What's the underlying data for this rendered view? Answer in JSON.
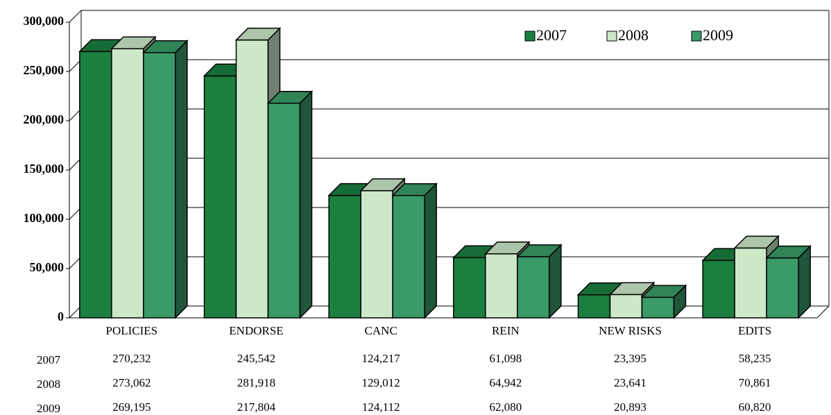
{
  "chart_data": {
    "type": "bar3d",
    "categories": [
      "POLICIES",
      "ENDORSE",
      "CANC",
      "REIN",
      "NEW RISKS",
      "EDITS"
    ],
    "series": [
      {
        "name": "2007",
        "color": "#1a7f3f",
        "values": [
          270232,
          245542,
          124217,
          61098,
          23395,
          58235
        ],
        "value_labels": [
          "270,232",
          "245,542",
          "124,217",
          "61,098",
          "23,395",
          "58,235"
        ]
      },
      {
        "name": "2008",
        "color": "#cce8c8",
        "values": [
          273062,
          281918,
          129012,
          64942,
          23641,
          70861
        ],
        "value_labels": [
          "273,062",
          "281,918",
          "129,012",
          "64,942",
          "23,641",
          "70,861"
        ]
      },
      {
        "name": "2009",
        "color": "#3a9a68",
        "values": [
          269195,
          217804,
          124112,
          62080,
          20893,
          60820
        ],
        "value_labels": [
          "269,195",
          "217,804",
          "124,112",
          "62,080",
          "20,893",
          "60,820"
        ]
      }
    ],
    "ylim": [
      0,
      300000
    ],
    "yticks": [
      0,
      {
        "value": 50000,
        "label": "50,000"
      },
      {
        "value": 100000,
        "label": "100,000"
      },
      {
        "value": 150000,
        "label": "150,000"
      },
      {
        "value": 200000,
        "label": "200,000"
      },
      {
        "value": 250000,
        "label": "250,000"
      },
      {
        "value": 300000,
        "label": "300,000"
      }
    ],
    "grid": true,
    "legend": "top-right",
    "data_table": true
  }
}
